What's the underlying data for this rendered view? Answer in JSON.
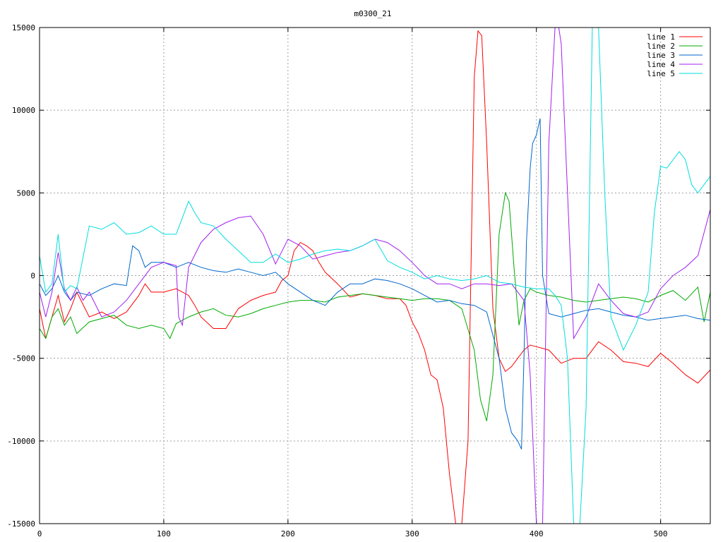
{
  "chart_data": {
    "type": "line",
    "title": "m0300_21",
    "xlabel": "",
    "ylabel": "",
    "xlim": [
      0,
      540
    ],
    "ylim": [
      -15000,
      15000
    ],
    "xticks": [
      "0",
      "100",
      "200",
      "300",
      "400",
      "500"
    ],
    "yticks": [
      "15000",
      "10000",
      "5000",
      "0",
      "-5000",
      "-10000",
      "-15000"
    ],
    "xtick_values": [
      0,
      100,
      200,
      300,
      400,
      500
    ],
    "ytick_values": [
      15000,
      10000,
      5000,
      0,
      -5000,
      -10000,
      -15000
    ],
    "grid": true,
    "legend_position": "top-right",
    "series": [
      {
        "name": "line 1",
        "color": "#ff0000",
        "x": [
          0,
          5,
          10,
          15,
          20,
          25,
          30,
          40,
          50,
          60,
          70,
          80,
          85,
          90,
          100,
          110,
          120,
          125,
          130,
          140,
          150,
          160,
          170,
          180,
          190,
          195,
          200,
          205,
          210,
          215,
          220,
          225,
          230,
          240,
          250,
          260,
          270,
          280,
          290,
          295,
          300,
          305,
          310,
          315,
          320,
          325,
          330,
          335,
          340,
          345,
          350,
          353,
          356,
          360,
          365,
          370,
          375,
          380,
          385,
          390,
          395,
          400,
          410,
          420,
          430,
          440,
          450,
          460,
          470,
          480,
          490,
          500,
          510,
          520,
          530,
          540
        ],
        "y": [
          -2000,
          -3800,
          -2500,
          -1200,
          -2800,
          -2000,
          -1000,
          -2500,
          -2200,
          -2600,
          -2200,
          -1200,
          -500,
          -1000,
          -1000,
          -800,
          -1200,
          -1800,
          -2500,
          -3200,
          -3200,
          -2000,
          -1500,
          -1200,
          -1000,
          -300,
          0,
          1500,
          2000,
          1800,
          1500,
          800,
          200,
          -500,
          -1300,
          -1100,
          -1200,
          -1400,
          -1400,
          -1800,
          -2800,
          -3500,
          -4500,
          -6000,
          -6300,
          -8000,
          -12000,
          -15000,
          -15000,
          -10000,
          12000,
          14800,
          14500,
          8000,
          -2000,
          -5000,
          -5800,
          -5500,
          -5000,
          -4500,
          -4200,
          -4300,
          -4500,
          -5300,
          -5000,
          -5000,
          -4000,
          -4500,
          -5200,
          -5300,
          -5500,
          -4700,
          -5300,
          -6000,
          -6500,
          -5700
        ]
      },
      {
        "name": "line 2",
        "color": "#00aa00",
        "x": [
          0,
          5,
          10,
          15,
          20,
          25,
          30,
          40,
          50,
          60,
          70,
          80,
          90,
          100,
          105,
          110,
          120,
          130,
          140,
          150,
          160,
          170,
          180,
          190,
          200,
          210,
          220,
          230,
          240,
          250,
          260,
          270,
          280,
          290,
          300,
          310,
          320,
          330,
          340,
          350,
          355,
          360,
          365,
          370,
          375,
          378,
          382,
          386,
          390,
          395,
          400,
          410,
          420,
          430,
          440,
          450,
          460,
          470,
          480,
          490,
          500,
          510,
          520,
          530,
          535,
          540
        ],
        "y": [
          -3200,
          -3800,
          -2500,
          -2000,
          -3000,
          -2500,
          -3500,
          -2800,
          -2600,
          -2400,
          -3000,
          -3200,
          -3000,
          -3200,
          -3800,
          -2900,
          -2500,
          -2200,
          -2000,
          -2400,
          -2500,
          -2300,
          -2000,
          -1800,
          -1600,
          -1500,
          -1500,
          -1600,
          -1300,
          -1200,
          -1100,
          -1200,
          -1300,
          -1400,
          -1500,
          -1400,
          -1400,
          -1500,
          -2000,
          -4500,
          -7500,
          -8800,
          -6000,
          2500,
          5000,
          4500,
          500,
          -3000,
          -1500,
          -800,
          -1000,
          -1200,
          -1300,
          -1500,
          -1600,
          -1500,
          -1400,
          -1300,
          -1400,
          -1600,
          -1200,
          -900,
          -1500,
          -700,
          -2800,
          -1000
        ]
      },
      {
        "name": "line 3",
        "color": "#0066cc",
        "x": [
          0,
          5,
          10,
          15,
          20,
          25,
          30,
          40,
          50,
          60,
          70,
          75,
          80,
          85,
          90,
          100,
          110,
          120,
          130,
          140,
          150,
          160,
          170,
          180,
          190,
          200,
          210,
          220,
          230,
          240,
          250,
          260,
          270,
          280,
          290,
          300,
          310,
          320,
          330,
          340,
          350,
          360,
          370,
          375,
          380,
          385,
          388,
          390,
          392,
          395,
          397,
          400,
          403,
          405,
          410,
          420,
          430,
          440,
          450,
          460,
          470,
          480,
          490,
          500,
          510,
          520,
          530,
          540
        ],
        "y": [
          -500,
          -1200,
          -800,
          0,
          -1000,
          -1500,
          -1000,
          -1200,
          -800,
          -500,
          -600,
          1800,
          1500,
          500,
          800,
          800,
          500,
          800,
          500,
          300,
          200,
          400,
          200,
          0,
          200,
          -500,
          -1000,
          -1500,
          -1800,
          -1000,
          -500,
          -500,
          -200,
          -300,
          -500,
          -800,
          -1200,
          -1600,
          -1500,
          -1700,
          -1800,
          -2200,
          -5000,
          -8000,
          -9500,
          -10000,
          -10500,
          -5000,
          2000,
          6500,
          8000,
          8500,
          9500,
          0,
          -2300,
          -2500,
          -2300,
          -2100,
          -2000,
          -2200,
          -2400,
          -2500,
          -2700,
          -2600,
          -2500,
          -2400,
          -2600,
          -2700
        ]
      },
      {
        "name": "line 4",
        "color": "#a020f0",
        "x": [
          0,
          5,
          10,
          15,
          20,
          25,
          30,
          35,
          40,
          50,
          60,
          70,
          80,
          90,
          100,
          110,
          112,
          115,
          120,
          130,
          140,
          150,
          160,
          170,
          180,
          190,
          200,
          210,
          220,
          230,
          240,
          250,
          260,
          270,
          280,
          290,
          300,
          310,
          320,
          330,
          340,
          350,
          360,
          370,
          380,
          390,
          395,
          400,
          405,
          410,
          415,
          418,
          420,
          430,
          440,
          450,
          460,
          470,
          480,
          490,
          500,
          510,
          520,
          530,
          540
        ],
        "y": [
          -1000,
          -2500,
          -1000,
          1400,
          -800,
          -1500,
          -700,
          -1500,
          -1000,
          -2500,
          -2200,
          -1500,
          -500,
          500,
          800,
          600,
          -2500,
          -3000,
          500,
          2000,
          2800,
          3200,
          3500,
          3600,
          2500,
          700,
          2200,
          1800,
          1000,
          1200,
          1400,
          1500,
          1800,
          2200,
          2000,
          1500,
          800,
          0,
          -500,
          -500,
          -800,
          -500,
          -500,
          -600,
          -500,
          -1500,
          -6000,
          -15000,
          -15000,
          8000,
          15000,
          15000,
          14000,
          -3800,
          -2500,
          -500,
          -1500,
          -2300,
          -2500,
          -2200,
          -800,
          0,
          500,
          1200,
          4000
        ]
      },
      {
        "name": "line 5",
        "color": "#00dddd",
        "x": [
          0,
          5,
          10,
          15,
          20,
          25,
          30,
          40,
          50,
          60,
          70,
          80,
          90,
          100,
          110,
          120,
          125,
          130,
          140,
          150,
          160,
          170,
          180,
          190,
          200,
          210,
          220,
          230,
          240,
          250,
          260,
          270,
          280,
          290,
          300,
          310,
          320,
          330,
          340,
          350,
          360,
          370,
          380,
          390,
          400,
          410,
          415,
          420,
          425,
          430,
          435,
          440,
          445,
          450,
          455,
          460,
          470,
          480,
          490,
          495,
          500,
          505,
          510,
          515,
          520,
          525,
          530,
          540
        ],
        "y": [
          1200,
          -1000,
          -500,
          2500,
          -1000,
          -600,
          -800,
          3000,
          2800,
          3200,
          2500,
          2600,
          3000,
          2500,
          2500,
          4500,
          3800,
          3200,
          3000,
          2200,
          1500,
          800,
          800,
          1300,
          800,
          1000,
          1300,
          1500,
          1600,
          1500,
          1800,
          2200,
          900,
          500,
          200,
          -200,
          0,
          -200,
          -300,
          -200,
          0,
          -400,
          -500,
          -700,
          -800,
          -800,
          -1200,
          -1800,
          -5000,
          -15000,
          -15000,
          -8000,
          15000,
          15000,
          5000,
          -2500,
          -4500,
          -3000,
          -1000,
          3800,
          6600,
          6500,
          7000,
          7500,
          7000,
          5500,
          5000,
          6000
        ]
      }
    ]
  }
}
